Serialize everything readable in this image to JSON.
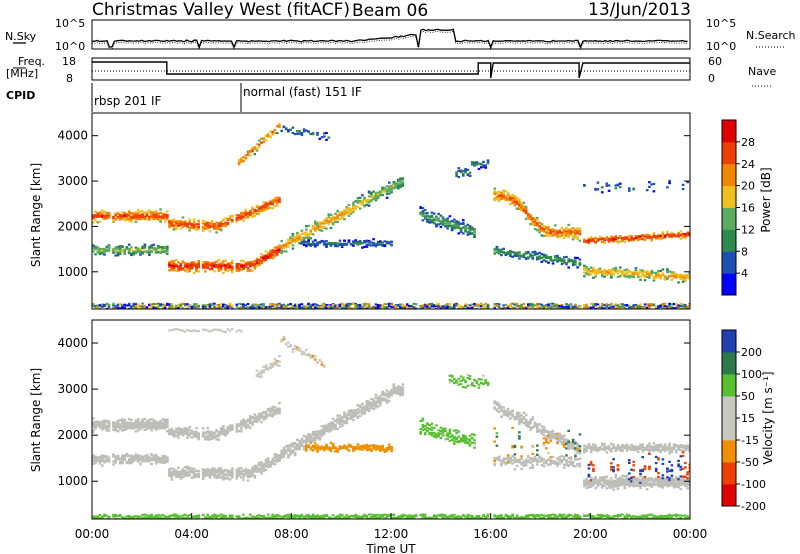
{
  "header": {
    "station": "Christmas Valley West (fitACF)",
    "beam": "Beam 06",
    "date": "13/Jun/2013"
  },
  "summary_panels": {
    "nsky_label": "N.Sky",
    "nsky_ticks": [
      "10^5",
      "10^0"
    ],
    "nsearch_label": "N.Search",
    "nsearch_ticks": [
      "10^5",
      "10^0"
    ],
    "freq_label": "Freq.",
    "freq_unit": "[MHz]",
    "freq_ticks": [
      "18",
      "8"
    ],
    "nave_label": "Nave",
    "nave_ticks": [
      "60",
      "0"
    ],
    "cpid_label": "CPID",
    "cpid_modes": [
      {
        "label": "rbsp 201 IF",
        "start_hour": 0,
        "end_hour": 6
      },
      {
        "label": "normal (fast) 151 IF",
        "start_hour": 6,
        "end_hour": 24
      }
    ]
  },
  "colors": {
    "power_scale": [
      "#0000ff",
      "#1f4fb0",
      "#2e8a4a",
      "#5aaa62",
      "#f0c020",
      "#f08800",
      "#f04000",
      "#e00000"
    ],
    "velocity_scale": [
      "#e00000",
      "#f04000",
      "#f09000",
      "#c8c8c0",
      "#c8c8c0",
      "#58c030",
      "#2e7a4a",
      "#2040b0"
    ],
    "ground_scatter": "#bebeb8"
  },
  "chart_data": [
    {
      "type": "heatmap",
      "title": "Power",
      "ylabel": "Slant Range [km]",
      "xlabel": "",
      "ylim": [
        180,
        4500
      ],
      "xlim": [
        0,
        24
      ],
      "yticks": [
        1000,
        2000,
        3000,
        4000
      ],
      "colorbar": {
        "label": "Power [dB]",
        "ticks": [
          "4",
          "8",
          "12",
          "16",
          "20",
          "24",
          "28"
        ],
        "range": [
          0,
          32
        ]
      },
      "features": [
        {
          "name": "upper band",
          "start_hour": 0.0,
          "end_hour": 3.0,
          "range_km": 2200,
          "power_db": 26
        },
        {
          "name": "lower band",
          "start_hour": 0.0,
          "end_hour": 3.0,
          "range_km": 1500,
          "power_db": 14
        },
        {
          "name": "lower band",
          "start_hour": 3.0,
          "end_hour": 7.5,
          "range_km": 1100,
          "power_db": 28
        },
        {
          "name": "rising band",
          "start_hour": 7.5,
          "end_hour": 12.0,
          "range_km": 3000,
          "power_db": 18
        },
        {
          "name": "band",
          "start_hour": 16.0,
          "end_hour": 24.0,
          "range_km": 1700,
          "power_db": 26
        }
      ]
    },
    {
      "type": "heatmap",
      "title": "Velocity",
      "ylabel": "Slant Range [km]",
      "xlabel": "Time UT",
      "ylim": [
        180,
        4500
      ],
      "xlim": [
        0,
        24
      ],
      "yticks": [
        1000,
        2000,
        3000,
        4000
      ],
      "xticks": [
        "00:00",
        "04:00",
        "08:00",
        "12:00",
        "16:00",
        "20:00",
        "00:00"
      ],
      "colorbar": {
        "label": "Velocity [m s⁻¹]",
        "ticks": [
          "200",
          "100",
          "50",
          "15",
          "-15",
          "-50",
          "-100",
          "-200"
        ],
        "range": [
          -250,
          250
        ]
      },
      "features": [
        {
          "name": "ground scatter",
          "start_hour": 0.0,
          "end_hour": 24.0,
          "velocity": 0
        },
        {
          "name": "patch",
          "start_hour": 8.5,
          "end_hour": 12.0,
          "range_km": 1750,
          "velocity": -70
        },
        {
          "name": "upper arm",
          "start_hour": 6.5,
          "end_hour": 9.0,
          "range_km": 3300,
          "velocity": -40
        }
      ]
    }
  ]
}
